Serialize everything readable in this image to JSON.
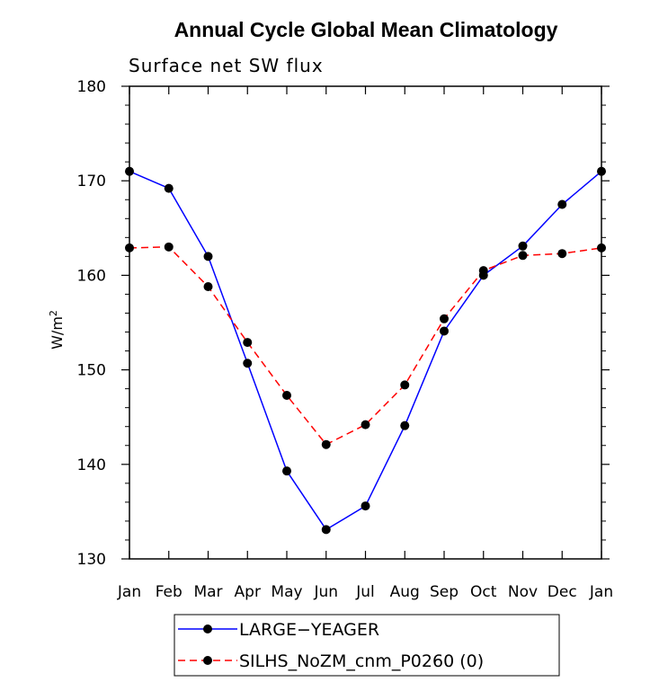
{
  "chart_data": {
    "type": "line",
    "title": "Annual Cycle Global Mean Climatology",
    "subtitle": "Surface net SW flux",
    "ylabel": "W/m",
    "ylabel_superscript": "2",
    "xlabel": "",
    "categories": [
      "Jan",
      "Feb",
      "Mar",
      "Apr",
      "May",
      "Jun",
      "Jul",
      "Aug",
      "Sep",
      "Oct",
      "Nov",
      "Dec",
      "Jan"
    ],
    "ylim": [
      130,
      180
    ],
    "yticks": [
      130,
      140,
      150,
      160,
      170,
      180
    ],
    "grid": false,
    "legend_position": "bottom",
    "series": [
      {
        "name": "LARGE−YEAGER",
        "color": "#0000ff",
        "dash": "solid",
        "marker": "filled-circle",
        "values": [
          171.0,
          169.2,
          162.0,
          150.7,
          139.3,
          133.1,
          135.6,
          144.1,
          154.1,
          160.0,
          163.1,
          167.5,
          171.0
        ]
      },
      {
        "name": "SILHS_NoZM_cnm_P0260 (0)",
        "color": "#ff0000",
        "dash": "dashed",
        "marker": "filled-circle",
        "values": [
          162.9,
          163.0,
          158.8,
          152.9,
          147.3,
          142.1,
          144.2,
          148.4,
          155.4,
          160.5,
          162.1,
          162.3,
          162.9
        ]
      }
    ]
  }
}
